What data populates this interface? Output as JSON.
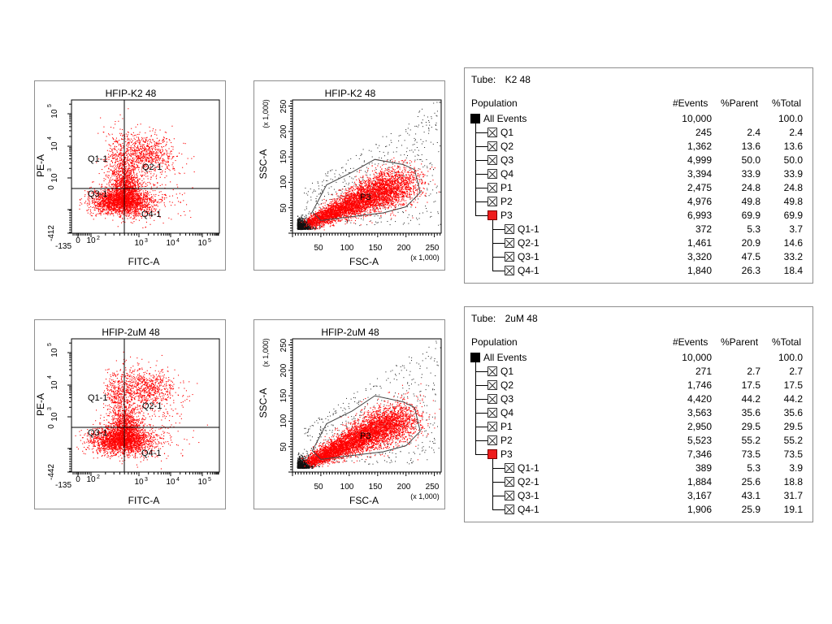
{
  "panels": [
    {
      "quad": {
        "title": "HFIP-K2 48",
        "xlabel": "FITC-A",
        "ylabel": "PE-A",
        "xticks": [
          "-135",
          "0",
          "10",
          "10",
          "10",
          "10"
        ],
        "xexp": [
          "",
          "",
          "2",
          "3",
          "4",
          "5"
        ],
        "yticks": [
          "-412",
          "0",
          "10",
          "10",
          "10",
          "10"
        ],
        "yexp": [
          "",
          "",
          "",
          "3",
          "4",
          "5"
        ],
        "gate_labels": [
          "Q1-1",
          "Q2-1",
          "Q3-1",
          "Q4-1"
        ]
      },
      "scatter": {
        "title": "HFIP-K2 48",
        "xlabel": "FSC-A",
        "ylabel": "SSC-A",
        "xscale": "(x 1,000)",
        "yscale": "(x 1,000)",
        "xticks": [
          "50",
          "100",
          "150",
          "200",
          "250"
        ],
        "yticks": [
          "50",
          "100",
          "150",
          "200",
          "250"
        ],
        "gate_label": "P3"
      },
      "table": {
        "tube_label": "Tube:",
        "tube_name": "K2 48",
        "headers": [
          "Population",
          "#Events",
          "%Parent",
          "%Total"
        ],
        "rows": [
          {
            "name": "All Events",
            "events": "10,000",
            "parent": "",
            "total": "100.0"
          },
          {
            "name": "Q1",
            "events": "245",
            "parent": "2.4",
            "total": "2.4"
          },
          {
            "name": "Q2",
            "events": "1,362",
            "parent": "13.6",
            "total": "13.6"
          },
          {
            "name": "Q3",
            "events": "4,999",
            "parent": "50.0",
            "total": "50.0"
          },
          {
            "name": "Q4",
            "events": "3,394",
            "parent": "33.9",
            "total": "33.9"
          },
          {
            "name": "P1",
            "events": "2,475",
            "parent": "24.8",
            "total": "24.8"
          },
          {
            "name": "P2",
            "events": "4,976",
            "parent": "49.8",
            "total": "49.8"
          },
          {
            "name": "P3",
            "events": "6,993",
            "parent": "69.9",
            "total": "69.9"
          },
          {
            "name": "Q1-1",
            "events": "372",
            "parent": "5.3",
            "total": "3.7"
          },
          {
            "name": "Q2-1",
            "events": "1,461",
            "parent": "20.9",
            "total": "14.6"
          },
          {
            "name": "Q3-1",
            "events": "3,320",
            "parent": "47.5",
            "total": "33.2"
          },
          {
            "name": "Q4-1",
            "events": "1,840",
            "parent": "26.3",
            "total": "18.4"
          }
        ]
      }
    },
    {
      "quad": {
        "title": "HFIP-2uM 48",
        "xlabel": "FITC-A",
        "ylabel": "PE-A",
        "xticks": [
          "-135",
          "0",
          "10",
          "10",
          "10",
          "10"
        ],
        "xexp": [
          "",
          "",
          "2",
          "3",
          "4",
          "5"
        ],
        "yticks": [
          "-442",
          "0",
          "10",
          "10",
          "10",
          "10"
        ],
        "yexp": [
          "",
          "",
          "",
          "3",
          "4",
          "5"
        ],
        "gate_labels": [
          "Q1-1",
          "Q2-1",
          "Q3-1",
          "Q4-1"
        ]
      },
      "scatter": {
        "title": "HFIP-2uM 48",
        "xlabel": "FSC-A",
        "ylabel": "SSC-A",
        "xscale": "(x 1,000)",
        "yscale": "(x 1,000)",
        "xticks": [
          "50",
          "100",
          "150",
          "200",
          "250"
        ],
        "yticks": [
          "50",
          "100",
          "150",
          "200",
          "250"
        ],
        "gate_label": "P3"
      },
      "table": {
        "tube_label": "Tube:",
        "tube_name": "2uM 48",
        "headers": [
          "Population",
          "#Events",
          "%Parent",
          "%Total"
        ],
        "rows": [
          {
            "name": "All Events",
            "events": "10,000",
            "parent": "",
            "total": "100.0"
          },
          {
            "name": "Q1",
            "events": "271",
            "parent": "2.7",
            "total": "2.7"
          },
          {
            "name": "Q2",
            "events": "1,746",
            "parent": "17.5",
            "total": "17.5"
          },
          {
            "name": "Q3",
            "events": "4,420",
            "parent": "44.2",
            "total": "44.2"
          },
          {
            "name": "Q4",
            "events": "3,563",
            "parent": "35.6",
            "total": "35.6"
          },
          {
            "name": "P1",
            "events": "2,950",
            "parent": "29.5",
            "total": "29.5"
          },
          {
            "name": "P2",
            "events": "5,523",
            "parent": "55.2",
            "total": "55.2"
          },
          {
            "name": "P3",
            "events": "7,346",
            "parent": "73.5",
            "total": "73.5"
          },
          {
            "name": "Q1-1",
            "events": "389",
            "parent": "5.3",
            "total": "3.9"
          },
          {
            "name": "Q2-1",
            "events": "1,884",
            "parent": "25.6",
            "total": "18.8"
          },
          {
            "name": "Q3-1",
            "events": "3,167",
            "parent": "43.1",
            "total": "31.7"
          },
          {
            "name": "Q4-1",
            "events": "1,906",
            "parent": "25.9",
            "total": "19.1"
          }
        ]
      }
    }
  ],
  "chart_data": [
    {
      "type": "scatter",
      "title": "HFIP-K2 48",
      "xlabel": "FITC-A",
      "ylabel": "PE-A",
      "scale": "biexponential",
      "xlim": [
        -135,
        100000
      ],
      "ylim": [
        -412,
        100000
      ],
      "quadrant_gates": [
        "Q1-1",
        "Q2-1",
        "Q3-1",
        "Q4-1"
      ],
      "colors": {
        "dots": "#ff0000"
      }
    },
    {
      "type": "scatter",
      "title": "HFIP-K2 48",
      "xlabel": "FSC-A",
      "ylabel": "SSC-A",
      "xlim": [
        0,
        262
      ],
      "ylim": [
        0,
        262
      ],
      "units": "(x 1,000)",
      "polygon_gate": "P3",
      "colors": {
        "gated": "#ff0000",
        "ungated": "#000000"
      }
    },
    {
      "type": "table",
      "tube": "K2 48",
      "columns": [
        "Population",
        "#Events",
        "%Parent",
        "%Total"
      ],
      "rows": [
        [
          "All Events",
          10000,
          null,
          100.0
        ],
        [
          "Q1",
          245,
          2.4,
          2.4
        ],
        [
          "Q2",
          1362,
          13.6,
          13.6
        ],
        [
          "Q3",
          4999,
          50.0,
          50.0
        ],
        [
          "Q4",
          3394,
          33.9,
          33.9
        ],
        [
          "P1",
          2475,
          24.8,
          24.8
        ],
        [
          "P2",
          4976,
          49.8,
          49.8
        ],
        [
          "P3",
          6993,
          69.9,
          69.9
        ],
        [
          "Q1-1",
          372,
          5.3,
          3.7
        ],
        [
          "Q2-1",
          1461,
          20.9,
          14.6
        ],
        [
          "Q3-1",
          3320,
          47.5,
          33.2
        ],
        [
          "Q4-1",
          1840,
          26.3,
          18.4
        ]
      ]
    },
    {
      "type": "scatter",
      "title": "HFIP-2uM 48",
      "xlabel": "FITC-A",
      "ylabel": "PE-A",
      "scale": "biexponential",
      "xlim": [
        -135,
        100000
      ],
      "ylim": [
        -442,
        100000
      ],
      "quadrant_gates": [
        "Q1-1",
        "Q2-1",
        "Q3-1",
        "Q4-1"
      ],
      "colors": {
        "dots": "#ff0000"
      }
    },
    {
      "type": "scatter",
      "title": "HFIP-2uM 48",
      "xlabel": "FSC-A",
      "ylabel": "SSC-A",
      "xlim": [
        0,
        262
      ],
      "ylim": [
        0,
        262
      ],
      "units": "(x 1,000)",
      "polygon_gate": "P3",
      "colors": {
        "gated": "#ff0000",
        "ungated": "#000000"
      }
    },
    {
      "type": "table",
      "tube": "2uM 48",
      "columns": [
        "Population",
        "#Events",
        "%Parent",
        "%Total"
      ],
      "rows": [
        [
          "All Events",
          10000,
          null,
          100.0
        ],
        [
          "Q1",
          271,
          2.7,
          2.7
        ],
        [
          "Q2",
          1746,
          17.5,
          17.5
        ],
        [
          "Q3",
          4420,
          44.2,
          44.2
        ],
        [
          "Q4",
          3563,
          35.6,
          35.6
        ],
        [
          "P1",
          2950,
          29.5,
          29.5
        ],
        [
          "P2",
          5523,
          55.2,
          55.2
        ],
        [
          "P3",
          7346,
          73.5,
          73.5
        ],
        [
          "Q1-1",
          389,
          5.3,
          3.9
        ],
        [
          "Q2-1",
          1884,
          25.6,
          18.8
        ],
        [
          "Q3-1",
          3167,
          43.1,
          31.7
        ],
        [
          "Q4-1",
          1906,
          25.9,
          19.1
        ]
      ]
    }
  ]
}
